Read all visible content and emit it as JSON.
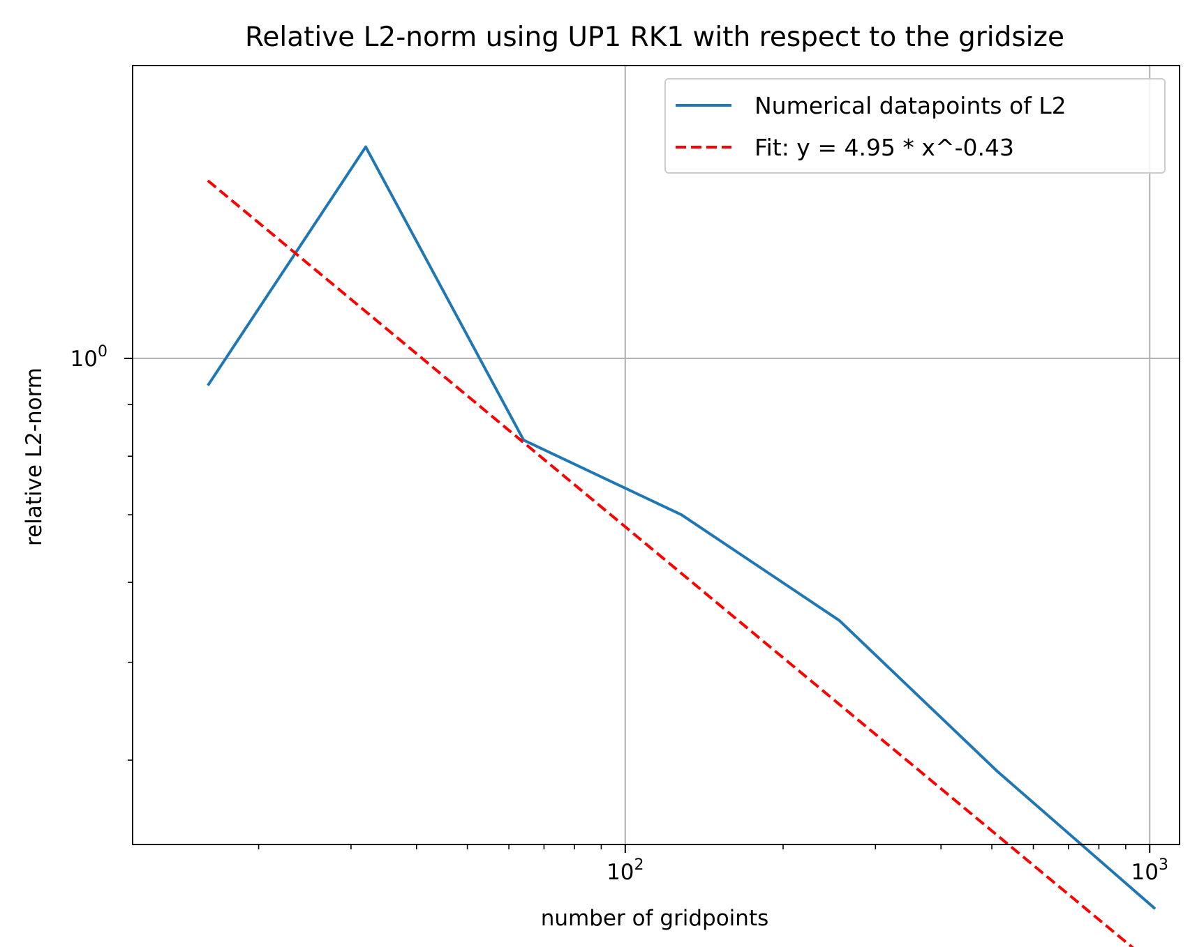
{
  "chart_data": {
    "type": "line",
    "title": "Relative L2-norm using UP1 RK1 with respect to the gridsize",
    "xlabel": "number of gridpoints",
    "ylabel": "relative L2-norm",
    "xscale": "log",
    "yscale": "log",
    "xlim": [
      11.5,
      1140
    ],
    "ylim": [
      0.33,
      1.95
    ],
    "grid": "major",
    "legend_position": "upper right",
    "x_ticks": [
      {
        "value": 100,
        "base": "10",
        "exp": "2"
      },
      {
        "value": 1000,
        "base": "10",
        "exp": "3"
      }
    ],
    "y_ticks": [
      {
        "value": 1,
        "base": "10",
        "exp": "0"
      }
    ],
    "series": [
      {
        "name": "Numerical datapoints of L2",
        "color": "#1f77b4",
        "style": "solid",
        "x": [
          16,
          32,
          64,
          128,
          256,
          512,
          1024
        ],
        "y": [
          0.94,
          1.62,
          0.83,
          0.7,
          0.55,
          0.39,
          0.285
        ]
      },
      {
        "name": "Fit: y = 4.95 * x^-0.43",
        "color": "#ff0000",
        "style": "dashed",
        "x": [
          16,
          1024
        ],
        "y": [
          1.5,
          0.25
        ]
      }
    ],
    "fit": {
      "a": 4.95,
      "b": -0.43
    }
  }
}
